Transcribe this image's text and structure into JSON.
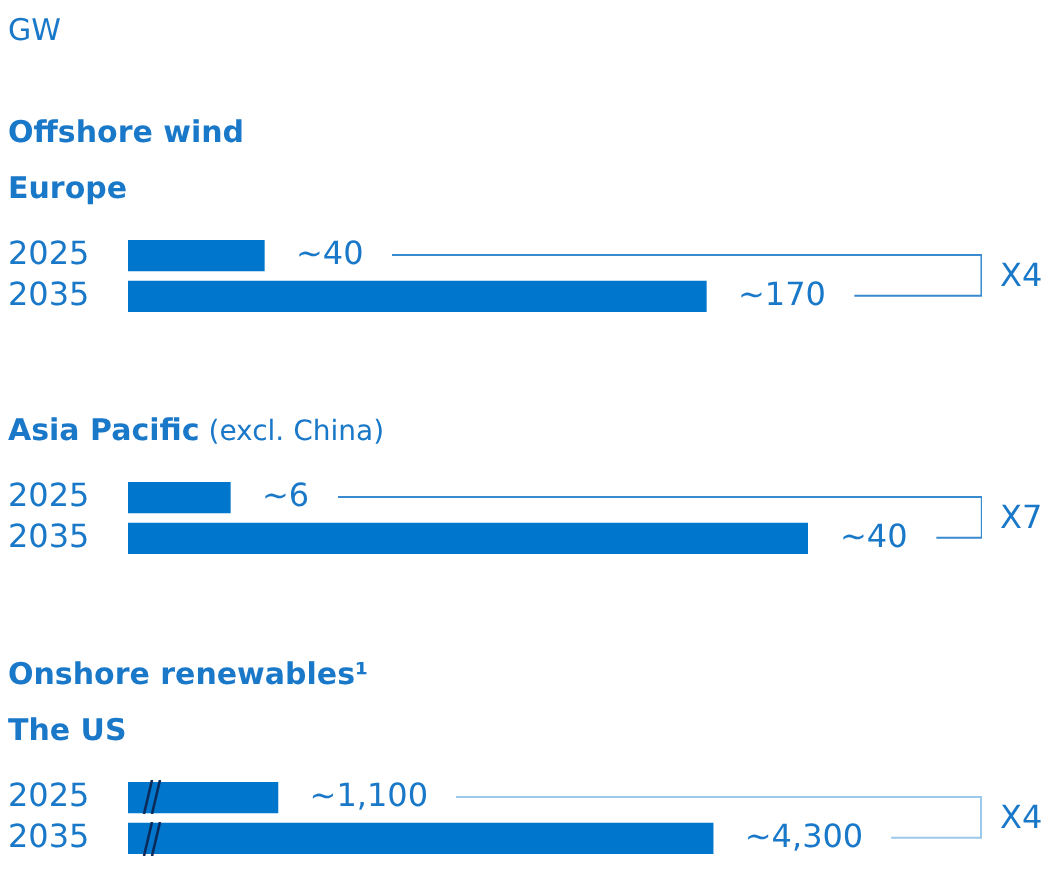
{
  "chart_data": [
    {
      "type": "bar",
      "orientation": "horizontal",
      "xlabel": "GW",
      "title": "Offshore wind",
      "subtitle": "Europe",
      "categories": [
        "2025",
        "2035"
      ],
      "values": [
        40,
        170
      ],
      "value_labels": [
        "~40",
        "~170"
      ],
      "color": "#0077cc",
      "tick_labels": "y",
      "grid": false,
      "legend": false,
      "annotations": [
        "X4"
      ]
    },
    {
      "type": "bar",
      "orientation": "horizontal",
      "title": "Asia Pacific",
      "subtitle": "(excl. China)",
      "categories": [
        "2025",
        "2035"
      ],
      "values": [
        6,
        40
      ],
      "value_labels": [
        "~6",
        "~40"
      ],
      "color": "#0077cc",
      "tick_labels": "y",
      "grid": false,
      "legend": false,
      "annotations": [
        "X7"
      ]
    },
    {
      "type": "bar",
      "orientation": "horizontal",
      "title": "Onshore renewables¹",
      "subtitle": "The US",
      "categories": [
        "2025",
        "2035"
      ],
      "values": [
        1100,
        4300
      ],
      "value_labels": [
        "~1,100",
        "~4,300"
      ],
      "color": "#0077cc",
      "tick_labels": "y",
      "grid": false,
      "legend": false,
      "annotations": [
        "X4"
      ]
    }
  ]
}
